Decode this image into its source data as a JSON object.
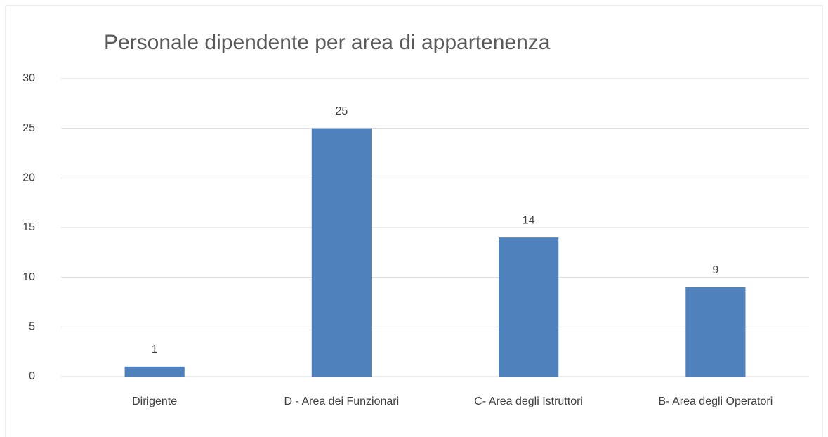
{
  "chart_data": {
    "type": "bar",
    "title": "Personale dipendente per area di appartenenza",
    "categories": [
      "Dirigente",
      "D - Area dei Funzionari",
      "C- Area degli Istruttori",
      "B- Area degli Operatori"
    ],
    "values": [
      1,
      25,
      14,
      9
    ],
    "color": "#4f81bd",
    "ylim": [
      0,
      30
    ],
    "yticks": [
      0,
      5,
      10,
      15,
      20,
      25,
      30
    ],
    "grid": true
  }
}
